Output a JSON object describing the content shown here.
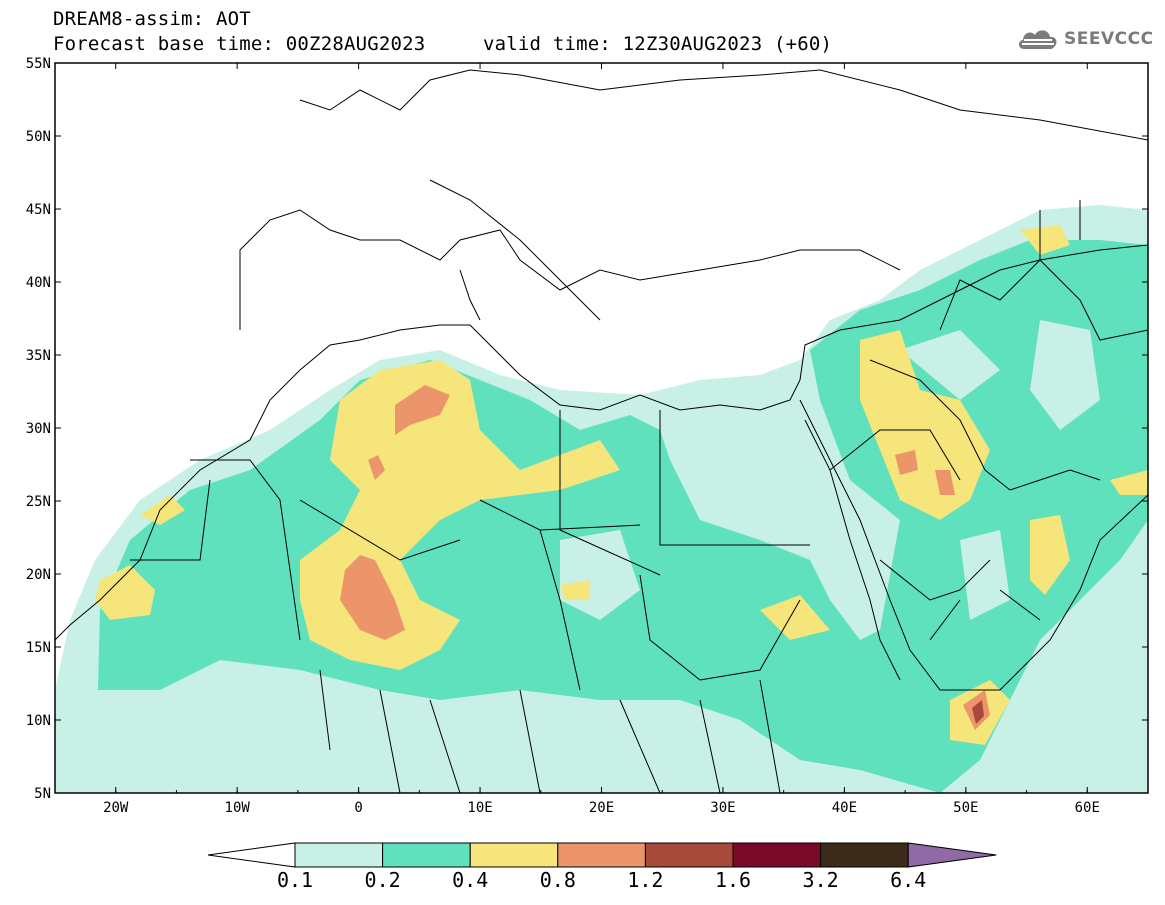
{
  "header": {
    "title_line1": "DREAM8-assim: AOT",
    "base_time": "Forecast base time: 00Z28AUG2023",
    "valid_time": "valid time: 12Z30AUG2023 (+60)",
    "logo_text": "SEEVCCC",
    "logo_icon": "cloud-icon"
  },
  "map": {
    "lon_range": [
      -25,
      65
    ],
    "lat_range": [
      5,
      55
    ],
    "lat_ticks": [
      {
        "v": 55,
        "label": "55N"
      },
      {
        "v": 50,
        "label": "50N"
      },
      {
        "v": 45,
        "label": "45N"
      },
      {
        "v": 40,
        "label": "40N"
      },
      {
        "v": 35,
        "label": "35N"
      },
      {
        "v": 30,
        "label": "30N"
      },
      {
        "v": 25,
        "label": "25N"
      },
      {
        "v": 20,
        "label": "20N"
      },
      {
        "v": 15,
        "label": "15N"
      },
      {
        "v": 10,
        "label": "10N"
      },
      {
        "v": 5,
        "label": "5N"
      }
    ],
    "lon_ticks": [
      {
        "v": -20,
        "label": "20W"
      },
      {
        "v": -10,
        "label": "10W"
      },
      {
        "v": 0,
        "label": "0"
      },
      {
        "v": 10,
        "label": "10E"
      },
      {
        "v": 20,
        "label": "20E"
      },
      {
        "v": 30,
        "label": "30E"
      },
      {
        "v": 40,
        "label": "40E"
      },
      {
        "v": 50,
        "label": "50E"
      },
      {
        "v": 60,
        "label": "60E"
      }
    ]
  },
  "colorbar": {
    "colors": [
      "#c8f0e6",
      "#5ee1bc",
      "#f5e57a",
      "#ed956a",
      "#a74a3c",
      "#7a0a2a",
      "#3c2a1a"
    ],
    "over_color": "#8f6aa6",
    "under_color": "#ffffff",
    "labels": [
      "0.1",
      "0.2",
      "0.4",
      "0.8",
      "1.2",
      "1.6",
      "3.2",
      "6.4"
    ]
  },
  "colors": {
    "c1": "#c8f0e6",
    "c2": "#5ee1bc",
    "c3": "#f5e57a",
    "c4": "#ed956a",
    "c5": "#a74a3c"
  }
}
